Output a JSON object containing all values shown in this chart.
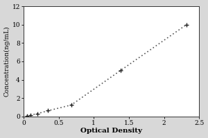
{
  "title": "",
  "xlabel": "Optical Density",
  "ylabel": "Concentration(ng/mL)",
  "x_data": [
    0.047,
    0.1,
    0.2,
    0.35,
    0.68,
    1.38,
    2.32
  ],
  "y_data": [
    0.078,
    0.156,
    0.312,
    0.625,
    1.25,
    5.0,
    10.0
  ],
  "xlim": [
    0,
    2.5
  ],
  "ylim": [
    0,
    12
  ],
  "xticks": [
    0,
    0.5,
    1.0,
    1.5,
    2.0,
    2.5
  ],
  "yticks": [
    0,
    2,
    4,
    6,
    8,
    10,
    12
  ],
  "marker_color": "#222222",
  "line_color": "#555555",
  "marker": "+",
  "marker_size": 5,
  "line_style": ":",
  "line_width": 1.2,
  "xlabel_fontsize": 7.5,
  "ylabel_fontsize": 6.5,
  "tick_fontsize": 6.5,
  "plot_bg": "#ffffff",
  "figure_bg": "#d8d8d8"
}
